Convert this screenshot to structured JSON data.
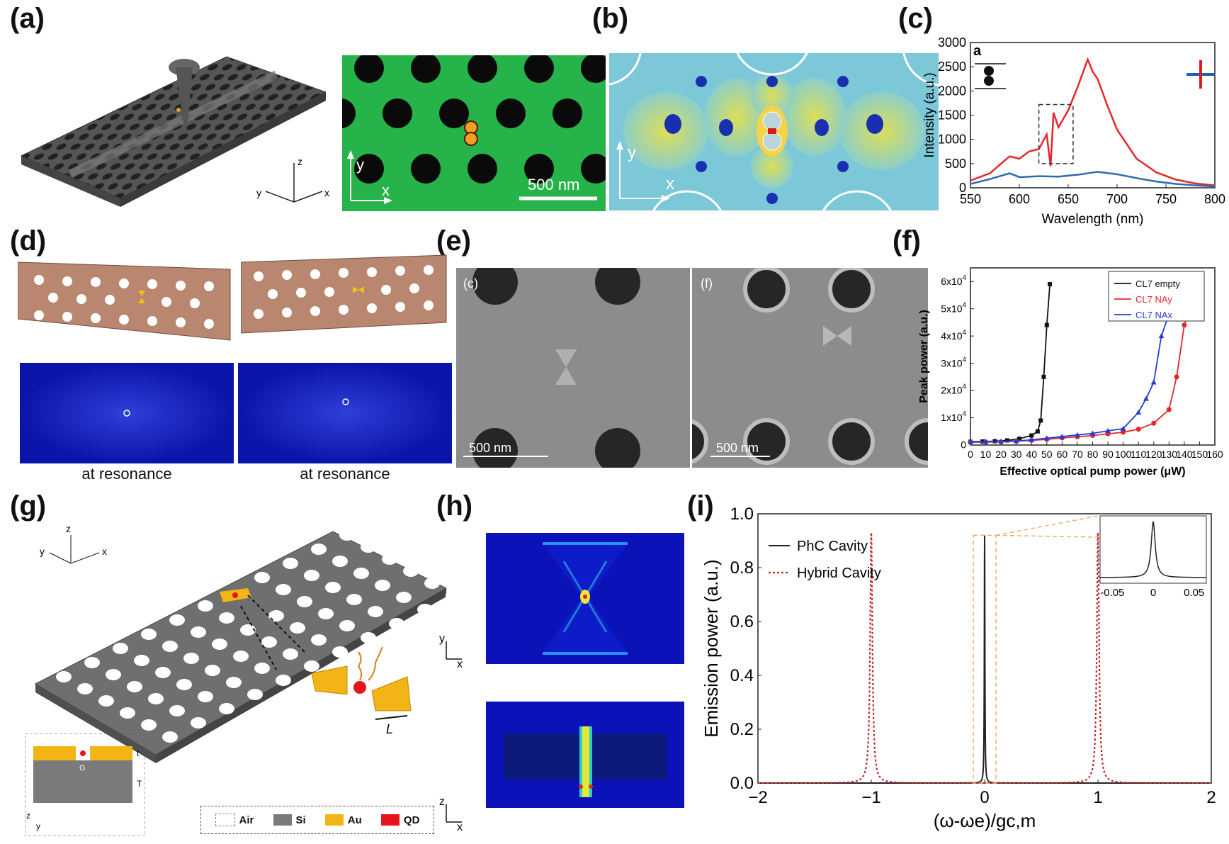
{
  "panel_labels": {
    "a": "(a)",
    "b": "(b)",
    "c": "(c)",
    "d": "(d)",
    "e": "(e)",
    "f": "(f)",
    "g": "(g)",
    "h": "(h)",
    "i": "(i)"
  },
  "panel_a": {
    "scale_bar": "500 nm",
    "axis_x": "x",
    "axis_y": "y",
    "axis_z": "z",
    "axes3d_x": "x",
    "axes3d_y": "y"
  },
  "panel_b": {
    "axis_x": "x",
    "axis_y": "y"
  },
  "panel_d": {
    "caption_left": "at resonance",
    "caption_right": "at resonance"
  },
  "panel_e": {
    "left_tag": "(c)",
    "right_tag": "(f)",
    "scale_left": "500 nm",
    "scale_right": "500 nm"
  },
  "panel_g": {
    "axis_z": "z",
    "axis_y": "y",
    "axis_x": "x",
    "cross_t": "t",
    "cross_T": "T",
    "cross_G": "G",
    "cross_z": "z",
    "cross_y": "y",
    "length_L": "L",
    "legend": [
      {
        "label": "Air",
        "color": "#ffffff"
      },
      {
        "label": "Si",
        "color": "#7a7a7a"
      },
      {
        "label": "Au",
        "color": "#f2b515"
      },
      {
        "label": "QD",
        "color": "#e8141c"
      }
    ]
  },
  "panel_h": {
    "top_y": "y",
    "top_x": "x",
    "bottom_z": "z",
    "bottom_x": "x"
  },
  "chart_data": [
    {
      "id": "c",
      "type": "line",
      "inset_tag": "a",
      "xlabel": "Wavelength (nm)",
      "ylabel": "Intensity (a.u.)",
      "xlim": [
        550,
        800
      ],
      "ylim": [
        0,
        3000
      ],
      "xticks": [
        "550",
        "600",
        "650",
        "700",
        "750",
        "800"
      ],
      "yticks": [
        "0",
        "500",
        "1000",
        "1500",
        "2000",
        "2500",
        "3000"
      ],
      "series": [
        {
          "color": "#e8262a",
          "x": [
            550,
            570,
            590,
            600,
            610,
            620,
            628,
            632,
            635,
            640,
            650,
            660,
            670,
            675,
            680,
            690,
            700,
            720,
            740,
            760,
            780,
            800
          ],
          "y": [
            150,
            300,
            650,
            600,
            750,
            800,
            1100,
            450,
            1550,
            1250,
            1600,
            2100,
            2650,
            2400,
            2250,
            1700,
            1200,
            600,
            320,
            170,
            90,
            50
          ]
        },
        {
          "color": "#2b6cb0",
          "x": [
            550,
            570,
            590,
            600,
            620,
            640,
            660,
            680,
            700,
            720,
            740,
            760,
            780,
            800
          ],
          "y": [
            80,
            180,
            300,
            220,
            240,
            230,
            270,
            330,
            280,
            200,
            130,
            80,
            50,
            30
          ]
        }
      ]
    },
    {
      "id": "f",
      "type": "line",
      "xlabel": "Effective optical pump power (μW)",
      "ylabel": "Peak power (a.u.)",
      "xlim": [
        0,
        160
      ],
      "ylim": [
        0,
        65000
      ],
      "xticks": [
        "0",
        "10",
        "20",
        "30",
        "40",
        "50",
        "60",
        "70",
        "80",
        "90",
        "100",
        "110",
        "120",
        "130",
        "140",
        "150",
        "160"
      ],
      "yticks": [
        "0",
        "1x10",
        "2x10",
        "3x10",
        "4x10",
        "5x10",
        "6x10"
      ],
      "ytick_exp": "4",
      "series": [
        {
          "name": "CL7 empty",
          "color": "#111111",
          "marker": "square",
          "x": [
            0,
            8,
            16,
            24,
            32,
            40,
            44,
            46,
            48,
            50,
            52
          ],
          "y": [
            1200,
            1300,
            1400,
            1700,
            2300,
            3500,
            5000,
            9000,
            25000,
            44000,
            59000
          ]
        },
        {
          "name": "CL7 NAy",
          "color": "#e8262a",
          "marker": "circle",
          "x": [
            0,
            10,
            20,
            30,
            40,
            50,
            60,
            70,
            80,
            90,
            100,
            110,
            120,
            130,
            135,
            140,
            145
          ],
          "y": [
            1000,
            1100,
            1200,
            1400,
            1700,
            2100,
            2600,
            3000,
            3500,
            4100,
            4700,
            5800,
            8000,
            13000,
            25000,
            44000,
            53000
          ]
        },
        {
          "name": "CL7 NAx",
          "color": "#1f3fd6",
          "marker": "triangle",
          "x": [
            0,
            10,
            20,
            30,
            40,
            50,
            60,
            70,
            80,
            90,
            100,
            110,
            115,
            120,
            125,
            130,
            135
          ],
          "y": [
            1100,
            1200,
            1300,
            1500,
            1900,
            2500,
            3100,
            3700,
            4300,
            5200,
            6000,
            12000,
            17000,
            23000,
            40000,
            48000,
            51000
          ]
        }
      ]
    },
    {
      "id": "i",
      "type": "line",
      "xlabel": "(ω-ωe)/gc,m",
      "ylabel": "Emission power (a.u.)",
      "xlim": [
        -2,
        2
      ],
      "ylim": [
        0,
        1.0
      ],
      "xticks": [
        "−2",
        "−1",
        "0",
        "1",
        "2"
      ],
      "yticks": [
        "0.0",
        "0.2",
        "0.4",
        "0.6",
        "0.8",
        "1.0"
      ],
      "series": [
        {
          "name": "PhC Cavity",
          "color": "#222222",
          "style": "solid",
          "peaks": [
            {
              "x": 0,
              "y": 0.92,
              "w": 0.003
            }
          ]
        },
        {
          "name": "Hybrid Cavity",
          "color": "#c0262a",
          "style": "dotted",
          "peaks": [
            {
              "x": -1,
              "y": 0.93,
              "w": 0.012
            },
            {
              "x": 1,
              "y": 0.93,
              "w": 0.012
            }
          ]
        }
      ],
      "inset": {
        "xticks": [
          "-0.05",
          "0",
          "0.05"
        ]
      }
    }
  ]
}
